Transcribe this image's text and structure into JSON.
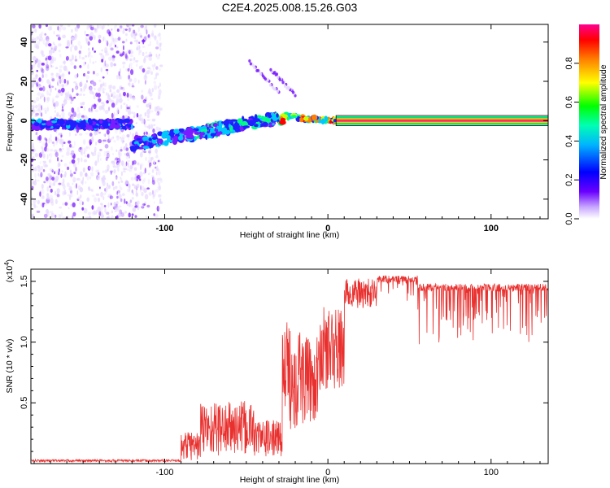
{
  "title": "C2E4.2025.008.15.26.G03",
  "colors": {
    "snr_line": "#e8312f",
    "axis": "#000000"
  },
  "chart_data": [
    {
      "type": "heatmap",
      "xlabel": "Height of straight line (km)",
      "ylabel": "Frequency (Hz)",
      "xlim": [
        -182,
        135
      ],
      "ylim": [
        -50,
        49
      ],
      "x_ticks": [
        -100,
        0,
        100
      ],
      "y_ticks": [
        -40,
        -20,
        0,
        20,
        40
      ],
      "colorbar": {
        "label": "Normalized spectral amplitude",
        "range": [
          0,
          1
        ],
        "ticks": [
          0.0,
          0.2,
          0.4,
          0.6,
          0.8
        ],
        "colormap": [
          "#ffffff",
          "#6a00ff",
          "#0000ff",
          "#00e5ff",
          "#00ff00",
          "#ffff00",
          "#ff0000",
          "#ff00aa"
        ]
      }
    },
    {
      "type": "line",
      "xlabel": "Height of straight line (km)",
      "ylabel": "SNR (10 * v/v)",
      "y_multiplier": "(x10",
      "y_multiplier_exp": "4",
      "y_multiplier_close": ")",
      "xlim": [
        -182,
        135
      ],
      "ylim": [
        0,
        1.6
      ],
      "x_ticks": [
        -100,
        0,
        100
      ],
      "y_ticks": [
        0.5,
        1.0,
        1.5
      ],
      "segments": [
        {
          "x": [
            -182,
            -90
          ],
          "baseline": 0.02,
          "noise": 0.02
        },
        {
          "x": [
            -90,
            -78
          ],
          "baseline": 0.1,
          "noise": 0.25
        },
        {
          "x": [
            -78,
            -45
          ],
          "baseline": 0.2,
          "noise": 0.45
        },
        {
          "x": [
            -45,
            -28
          ],
          "baseline": 0.15,
          "noise": 0.3
        },
        {
          "x": [
            -28,
            -15
          ],
          "baseline": 0.55,
          "noise": 0.9
        },
        {
          "x": [
            -15,
            -5
          ],
          "baseline": 0.55,
          "noise": 0.7
        },
        {
          "x": [
            -5,
            10
          ],
          "baseline": 0.8,
          "noise": 0.7
        },
        {
          "x": [
            10,
            30
          ],
          "baseline": 1.35,
          "noise": 0.25
        },
        {
          "x": [
            30,
            55
          ],
          "baseline": 1.52,
          "noise": 0.1
        },
        {
          "x": [
            55,
            135
          ],
          "baseline": 1.45,
          "noise": 0.25
        }
      ],
      "ymax_observed": 1.57
    }
  ]
}
